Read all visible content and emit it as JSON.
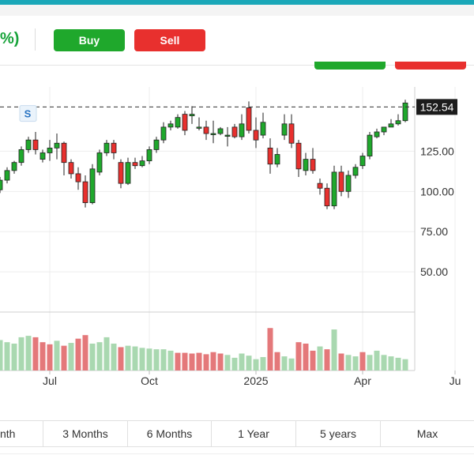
{
  "header": {
    "change_fragment": "%)",
    "buy_label": "Buy",
    "sell_label": "Sell"
  },
  "colors": {
    "up": "#1fa82c",
    "down": "#e8302e",
    "vol_up": "#a9d8b0",
    "vol_down": "#e4787a",
    "accent": "#1aa7b8"
  },
  "chart_data": {
    "type": "candlestick",
    "ylim": [
      25,
      165
    ],
    "y_ticks": [
      "125.00",
      "100.00",
      "75.00",
      "50.00"
    ],
    "y_tick_values": [
      125,
      100,
      75,
      50
    ],
    "x_ticks": [
      "Jul",
      "Oct",
      "2025",
      "Apr",
      "Ju"
    ],
    "x_tick_index": [
      7,
      21,
      36,
      51,
      64
    ],
    "last_price": 152.54,
    "last_price_label": "152.54",
    "dividend_marker": "S",
    "dividend_index": 4,
    "candles": [
      [
        101,
        107,
        99,
        109
      ],
      [
        107,
        113,
        105,
        115
      ],
      [
        113,
        118,
        111,
        119
      ],
      [
        118,
        126,
        116,
        128
      ],
      [
        126,
        132,
        124,
        134
      ],
      [
        132,
        126,
        123,
        137
      ],
      [
        120,
        124,
        118,
        126
      ],
      [
        124,
        127,
        119,
        132
      ],
      [
        127,
        130,
        120,
        136
      ],
      [
        130,
        118,
        110,
        131
      ],
      [
        118,
        111,
        108,
        120
      ],
      [
        111,
        106,
        101,
        115
      ],
      [
        106,
        93,
        90,
        110
      ],
      [
        93,
        114,
        92,
        117
      ],
      [
        112,
        124,
        110,
        126
      ],
      [
        124,
        130,
        122,
        132
      ],
      [
        130,
        124,
        120,
        132
      ],
      [
        118,
        105,
        102,
        120
      ],
      [
        105,
        118,
        104,
        121
      ],
      [
        118,
        116,
        114,
        121
      ],
      [
        116,
        119,
        115,
        122
      ],
      [
        119,
        126,
        117,
        128
      ],
      [
        126,
        132,
        124,
        134
      ],
      [
        132,
        140,
        130,
        143
      ],
      [
        140,
        142,
        138,
        144
      ],
      [
        140,
        146,
        139,
        148
      ],
      [
        148,
        138,
        135,
        150
      ],
      [
        147,
        148,
        142,
        153
      ],
      [
        140,
        140,
        138,
        146
      ],
      [
        140,
        136,
        132,
        144
      ],
      [
        136,
        136,
        130,
        144
      ],
      [
        136,
        139,
        135,
        140
      ],
      [
        135,
        135,
        128,
        140
      ],
      [
        140,
        134,
        133,
        142
      ],
      [
        134,
        142,
        132,
        148
      ],
      [
        152,
        138,
        136,
        156
      ],
      [
        138,
        132,
        127,
        146
      ],
      [
        135,
        143,
        133,
        149
      ],
      [
        127,
        117,
        111,
        133
      ],
      [
        117,
        123,
        115,
        127
      ],
      [
        135,
        142,
        132,
        148
      ],
      [
        142,
        130,
        127,
        148
      ],
      [
        130,
        114,
        109,
        132
      ],
      [
        113,
        120,
        110,
        124
      ],
      [
        120,
        113,
        111,
        127
      ],
      [
        105,
        102,
        98,
        108
      ],
      [
        102,
        91,
        89,
        105
      ],
      [
        91,
        112,
        89,
        116
      ],
      [
        112,
        100,
        97,
        116
      ],
      [
        100,
        110,
        96,
        113
      ],
      [
        110,
        115,
        108,
        117
      ],
      [
        116,
        122,
        114,
        124
      ],
      [
        122,
        135,
        120,
        137
      ],
      [
        134,
        137,
        133,
        139
      ],
      [
        137,
        140,
        135,
        140
      ],
      [
        140,
        142,
        140,
        145
      ],
      [
        142,
        144,
        141,
        148
      ],
      [
        144,
        155,
        143,
        157
      ]
    ],
    "volume": [
      [
        0.43,
        1
      ],
      [
        0.4,
        1
      ],
      [
        0.38,
        1
      ],
      [
        0.47,
        1
      ],
      [
        0.49,
        1
      ],
      [
        0.47,
        0
      ],
      [
        0.4,
        0
      ],
      [
        0.37,
        0
      ],
      [
        0.42,
        1
      ],
      [
        0.35,
        0
      ],
      [
        0.39,
        1
      ],
      [
        0.45,
        0
      ],
      [
        0.5,
        0
      ],
      [
        0.38,
        1
      ],
      [
        0.4,
        1
      ],
      [
        0.47,
        1
      ],
      [
        0.38,
        1
      ],
      [
        0.33,
        0
      ],
      [
        0.35,
        1
      ],
      [
        0.34,
        1
      ],
      [
        0.32,
        1
      ],
      [
        0.31,
        1
      ],
      [
        0.3,
        1
      ],
      [
        0.3,
        1
      ],
      [
        0.28,
        1
      ],
      [
        0.25,
        0
      ],
      [
        0.25,
        0
      ],
      [
        0.24,
        0
      ],
      [
        0.25,
        0
      ],
      [
        0.23,
        0
      ],
      [
        0.26,
        0
      ],
      [
        0.24,
        0
      ],
      [
        0.22,
        1
      ],
      [
        0.18,
        1
      ],
      [
        0.24,
        1
      ],
      [
        0.21,
        1
      ],
      [
        0.16,
        1
      ],
      [
        0.19,
        1
      ],
      [
        0.6,
        0
      ],
      [
        0.26,
        0
      ],
      [
        0.2,
        1
      ],
      [
        0.17,
        1
      ],
      [
        0.4,
        0
      ],
      [
        0.38,
        0
      ],
      [
        0.28,
        0
      ],
      [
        0.34,
        1
      ],
      [
        0.3,
        0
      ],
      [
        0.58,
        1
      ],
      [
        0.24,
        0
      ],
      [
        0.22,
        1
      ],
      [
        0.2,
        1
      ],
      [
        0.26,
        0
      ],
      [
        0.22,
        1
      ],
      [
        0.28,
        1
      ],
      [
        0.22,
        1
      ],
      [
        0.2,
        1
      ],
      [
        0.18,
        1
      ],
      [
        0.16,
        1
      ]
    ]
  },
  "range_tabs": [
    "nth",
    "3 Months",
    "6 Months",
    "1 Year",
    "5 years",
    "Max"
  ]
}
